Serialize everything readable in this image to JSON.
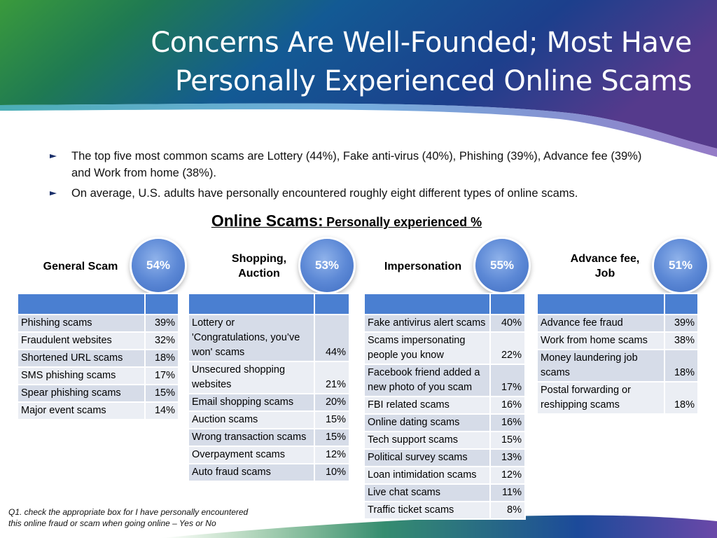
{
  "slide": {
    "title_lines": [
      "Concerns Are Well-Founded; Most Have",
      "Personally Experienced Online Scams"
    ],
    "bullets": [
      "The top five most common scams are Lottery (44%), Fake anti-virus (40%), Phishing (39%), Advance fee (39%) and Work from home (38%).",
      "On average, U.S. adults have personally encountered roughly eight different types of online scams."
    ],
    "heading_main": "Online Scams:",
    "heading_sub": "Personally experienced %",
    "footnote_lines": [
      "Q1. check the appropriate box for I have personally encountered",
      "this online fraud or scam when going online – Yes or No"
    ]
  },
  "groups": [
    {
      "label_lines": [
        "General Scam"
      ],
      "percent": "54%",
      "rows": [
        {
          "name": "Phishing scams",
          "pct": "39%"
        },
        {
          "name": "Fraudulent websites",
          "pct": "32%"
        },
        {
          "name": "Shortened URL scams",
          "pct": "18%"
        },
        {
          "name": "SMS phishing scams",
          "pct": "17%"
        },
        {
          "name": "Spear phishing scams",
          "pct": "15%"
        },
        {
          "name": "Major event scams",
          "pct": "14%"
        }
      ]
    },
    {
      "label_lines": [
        "Shopping,",
        "Auction"
      ],
      "percent": "53%",
      "rows": [
        {
          "name": "Lottery or 'Congratulations, you’ve won' scams",
          "pct": "44%"
        },
        {
          "name": "Unsecured shopping websites",
          "pct": "21%"
        },
        {
          "name": "Email shopping scams",
          "pct": "20%"
        },
        {
          "name": "Auction scams",
          "pct": "15%"
        },
        {
          "name": "Wrong transaction scams",
          "pct": "15%"
        },
        {
          "name": "Overpayment scams",
          "pct": "12%"
        },
        {
          "name": "Auto fraud scams",
          "pct": "10%"
        }
      ]
    },
    {
      "label_lines": [
        "Impersonation"
      ],
      "percent": "55%",
      "rows": [
        {
          "name": "Fake antivirus alert scams",
          "pct": "40%"
        },
        {
          "name": "Scams impersonating people you know",
          "pct": "22%"
        },
        {
          "name": "Facebook friend added a new photo of you scam",
          "pct": "17%"
        },
        {
          "name": "FBI related scams",
          "pct": "16%"
        },
        {
          "name": "Online dating scams",
          "pct": "16%"
        },
        {
          "name": "Tech support scams",
          "pct": "15%"
        },
        {
          "name": "Political survey scams",
          "pct": "13%"
        },
        {
          "name": "Loan intimidation scams",
          "pct": "12%"
        },
        {
          "name": "Live chat scams",
          "pct": "11%"
        },
        {
          "name": "Traffic ticket scams",
          "pct": "8%"
        }
      ]
    },
    {
      "label_lines": [
        "Advance fee,",
        "Job"
      ],
      "percent": "51%",
      "rows": [
        {
          "name": "Advance fee fraud",
          "pct": "39%"
        },
        {
          "name": "Work from home scams",
          "pct": "38%"
        },
        {
          "name": "Money laundering job scams",
          "pct": "18%"
        },
        {
          "name": "Postal forwarding or reshipping scams",
          "pct": "18%"
        }
      ]
    }
  ],
  "colors": {
    "table_header": "#4a7fd1",
    "row_odd": "#d6dce8",
    "row_even": "#ebeef4",
    "banner_green": "#2d8a3a",
    "banner_blue": "#14539a",
    "banner_purple": "#5a3a8a"
  },
  "icons": {
    "bullet": "chevron-right-icon"
  }
}
